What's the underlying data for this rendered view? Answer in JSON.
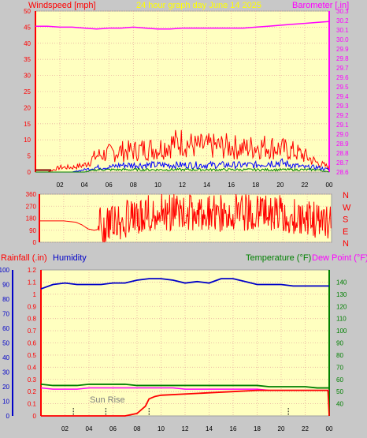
{
  "header": {
    "left_title": "Windspeed [mph]",
    "center_title": "24 hour graph day   June 14 2025",
    "right_title": "Barometer [.in]"
  },
  "colors": {
    "plot_bg": "#ffffc0",
    "grid": "#e8b0a0",
    "frame": "#c8c8c8",
    "red": "#ff0000",
    "blue": "#0000ff",
    "green": "#008000",
    "magenta": "#ff00ff",
    "yellow_title": "#ffff00",
    "dark_red_axis": "#8b0000",
    "humidity_blue": "#0000c8"
  },
  "chart_data": [
    {
      "type": "line",
      "title": "24 hour graph day   June 14 2025",
      "xlabel": "",
      "x_ticks": [
        "02",
        "04",
        "06",
        "08",
        "10",
        "12",
        "14",
        "16",
        "18",
        "20",
        "22",
        "00"
      ],
      "left_axis": {
        "label": "Windspeed [mph]",
        "ylim": [
          0,
          50
        ],
        "ticks": [
          0,
          5,
          10,
          15,
          20,
          25,
          30,
          35,
          40,
          45,
          50
        ]
      },
      "right_axis": {
        "label": "Barometer [.in]",
        "ylim": [
          28.6,
          30.3
        ],
        "ticks": [
          28.6,
          28.7,
          28.8,
          28.9,
          29.0,
          29.1,
          29.2,
          29.3,
          29.4,
          29.5,
          29.6,
          29.7,
          29.8,
          29.9,
          30.0,
          30.1,
          30.2,
          30.3
        ]
      },
      "series": [
        {
          "name": "Barometer",
          "color": "#ff00ff",
          "axis": "right",
          "x": [
            0,
            1,
            2,
            3,
            4,
            5,
            6,
            7,
            8,
            9,
            10,
            11,
            12,
            13,
            14,
            15,
            16,
            17,
            18,
            19,
            20,
            21,
            22,
            23,
            24
          ],
          "values": [
            30.14,
            30.14,
            30.13,
            30.13,
            30.12,
            30.11,
            30.12,
            30.12,
            30.13,
            30.12,
            30.11,
            30.11,
            30.12,
            30.12,
            30.12,
            30.12,
            30.12,
            30.12,
            30.13,
            30.14,
            30.15,
            30.16,
            30.17,
            30.18,
            30.19
          ]
        },
        {
          "name": "Wind Gust",
          "color": "#ff0000",
          "axis": "left",
          "x": [
            0,
            1,
            2,
            3,
            4,
            5,
            6,
            7,
            8,
            9,
            10,
            11,
            12,
            13,
            14,
            15,
            16,
            17,
            18,
            19,
            20,
            21,
            22,
            23,
            24
          ],
          "values": [
            0,
            0,
            2,
            2,
            3,
            7,
            8,
            9,
            9,
            10,
            10,
            12,
            13,
            11,
            11,
            11,
            11,
            10,
            11,
            11,
            10,
            9,
            7,
            4,
            2
          ]
        },
        {
          "name": "Wind Speed",
          "color": "#0000ff",
          "axis": "left",
          "x": [
            0,
            1,
            2,
            3,
            4,
            5,
            6,
            7,
            8,
            9,
            10,
            11,
            12,
            13,
            14,
            15,
            16,
            17,
            18,
            19,
            20,
            21,
            22,
            23,
            24
          ],
          "values": [
            0,
            0,
            0,
            0,
            1,
            2,
            2,
            3,
            3,
            3,
            3,
            3,
            3,
            3,
            3,
            3,
            3,
            3,
            3,
            4,
            4,
            3,
            2,
            2,
            1
          ]
        },
        {
          "name": "Wind Average",
          "color": "#008000",
          "axis": "left",
          "x": [
            0,
            1,
            2,
            3,
            4,
            5,
            6,
            7,
            8,
            9,
            10,
            11,
            12,
            13,
            14,
            15,
            16,
            17,
            18,
            19,
            20,
            21,
            22,
            23,
            24
          ],
          "values": [
            0,
            0,
            0,
            0,
            0,
            1,
            1,
            1,
            1,
            1,
            1,
            1,
            1,
            1,
            1,
            1,
            1,
            1,
            1,
            1,
            1,
            1,
            1,
            1,
            0
          ]
        }
      ]
    },
    {
      "type": "line",
      "title": "",
      "xlabel": "",
      "left_axis": {
        "label": "",
        "ylim": [
          0,
          360
        ],
        "ticks": [
          0,
          90,
          180,
          270,
          360
        ]
      },
      "right_labels": [
        "N",
        "W",
        "S",
        "E",
        "N"
      ],
      "series": [
        {
          "name": "Wind Direction",
          "color": "#ff0000",
          "x": [
            0,
            2,
            3,
            3.5,
            4,
            4.5,
            5,
            6,
            8,
            10,
            12,
            14,
            16,
            18,
            20,
            22,
            24
          ],
          "values": [
            160,
            160,
            150,
            130,
            100,
            90,
            100,
            110,
            170,
            200,
            190,
            180,
            190,
            200,
            180,
            150,
            120
          ]
        }
      ]
    },
    {
      "type": "line",
      "title": "",
      "xlabel": "",
      "x_ticks": [
        "02",
        "04",
        "06",
        "08",
        "10",
        "12",
        "14",
        "16",
        "18",
        "20",
        "22",
        "00"
      ],
      "left_axis_1": {
        "label": "Rainfall (.in)",
        "ylim": [
          0,
          1.2
        ],
        "ticks": [
          0,
          0.1,
          0.2,
          0.3,
          0.4,
          0.5,
          0.6,
          0.7,
          0.8,
          0.9,
          1,
          1.1,
          1.2
        ]
      },
      "left_axis_2": {
        "label": "Humidity",
        "ylim": [
          0,
          100
        ],
        "ticks": [
          0,
          10,
          20,
          30,
          40,
          50,
          60,
          70,
          80,
          90,
          100
        ]
      },
      "right_axis": {
        "label": "Temperature (°F)",
        "label2": "Dew Point (°F)",
        "ylim": [
          30,
          150
        ],
        "ticks": [
          40,
          50,
          60,
          70,
          80,
          90,
          100,
          110,
          120,
          130,
          140
        ]
      },
      "annotations": [
        {
          "text": "Sun Rise",
          "x": 5.4
        }
      ],
      "series": [
        {
          "name": "Humidity",
          "color": "#0000c8",
          "axis": "humidity",
          "x": [
            0,
            1,
            2,
            3,
            4,
            5,
            6,
            7,
            8,
            9,
            10,
            11,
            12,
            13,
            14,
            15,
            16,
            17,
            18,
            19,
            20,
            21,
            22,
            23,
            24
          ],
          "values": [
            87,
            90,
            91,
            90,
            90,
            90,
            91,
            91,
            93,
            94,
            94,
            93,
            91,
            92,
            91,
            94,
            94,
            92,
            90,
            90,
            90,
            89,
            89,
            89,
            89
          ]
        },
        {
          "name": "Temperature",
          "color": "#008000",
          "axis": "right",
          "x": [
            0,
            1,
            2,
            3,
            4,
            5,
            6,
            7,
            8,
            9,
            10,
            11,
            12,
            13,
            14,
            15,
            16,
            17,
            18,
            19,
            20,
            21,
            22,
            23,
            24
          ],
          "values": [
            56,
            55,
            55,
            55,
            56,
            56,
            56,
            56,
            55,
            55,
            55,
            55,
            55,
            55,
            55,
            55,
            55,
            55,
            55,
            54,
            54,
            54,
            54,
            53,
            53
          ]
        },
        {
          "name": "Dew Point",
          "color": "#ff00ff",
          "axis": "right",
          "x": [
            0,
            1,
            2,
            3,
            4,
            5,
            6,
            7,
            8,
            9,
            10,
            11,
            12,
            13,
            14,
            15,
            16,
            17,
            18,
            19,
            20,
            21,
            22,
            23,
            24
          ],
          "values": [
            53,
            52,
            52,
            52,
            53,
            53,
            53,
            53,
            53,
            53,
            53,
            53,
            52,
            52,
            52,
            52,
            52,
            52,
            52,
            51,
            51,
            51,
            51,
            51,
            51
          ]
        },
        {
          "name": "Rainfall",
          "color": "#ff0000",
          "axis": "rain",
          "x": [
            0,
            7,
            8,
            8.7,
            9,
            9.5,
            10,
            12,
            14,
            16,
            18,
            20,
            22,
            23.9,
            24
          ],
          "values": [
            0,
            0,
            0.02,
            0.08,
            0.14,
            0.16,
            0.17,
            0.18,
            0.19,
            0.2,
            0.21,
            0.21,
            0.21,
            0.21,
            0
          ]
        }
      ]
    }
  ]
}
